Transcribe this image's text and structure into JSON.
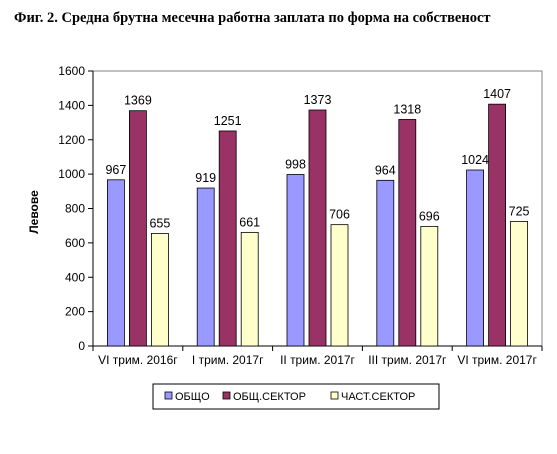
{
  "title": "Фиг. 2. Средна брутна  месечна работна заплата по форма на собственост",
  "chart_data": {
    "type": "bar",
    "categories": [
      "VI трим. 2016г",
      "I трим. 2017г",
      "II трим. 2017г",
      "III трим. 2017г",
      "VI трим. 2017г"
    ],
    "series": [
      {
        "name": "ОБЩО",
        "values": [
          967,
          919,
          998,
          964,
          1024
        ],
        "color": "#9999ff"
      },
      {
        "name": "ОБЩ.СЕКТОР",
        "values": [
          1369,
          1251,
          1373,
          1318,
          1407
        ],
        "color": "#993366"
      },
      {
        "name": "ЧАСТ.СЕКТОР",
        "values": [
          655,
          661,
          706,
          696,
          725
        ],
        "color": "#ffffcc"
      }
    ],
    "ylabel": "Левове",
    "xlabel": "",
    "ylim": [
      0,
      1600
    ],
    "yticks": [
      0,
      200,
      400,
      600,
      800,
      1000,
      1200,
      1400,
      1600
    ],
    "grid": false,
    "legend": "bottom"
  }
}
